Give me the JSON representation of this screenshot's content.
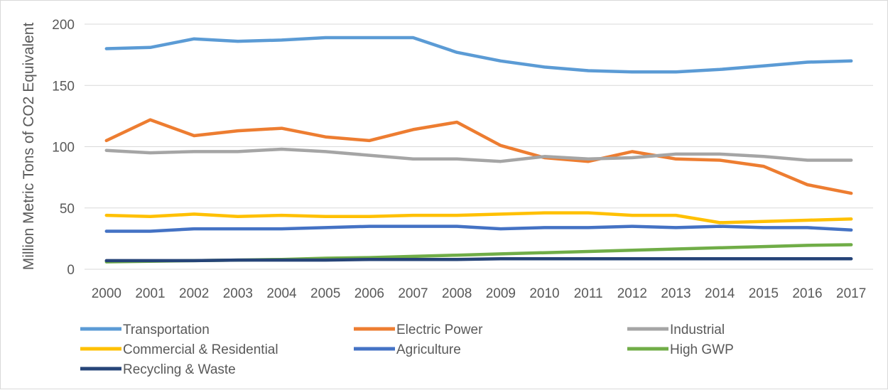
{
  "chart_data": {
    "type": "line",
    "title": "",
    "xlabel": "",
    "ylabel": "Million Metric Tons of CO2 Equivalent",
    "ylim": [
      0,
      200
    ],
    "yticks": [
      "0",
      "50",
      "100",
      "150",
      "200"
    ],
    "grid": "horizontal",
    "legend": "bottom",
    "categories": [
      "2000",
      "2001",
      "2002",
      "2003",
      "2004",
      "2005",
      "2006",
      "2007",
      "2008",
      "2009",
      "2010",
      "2011",
      "2012",
      "2013",
      "2014",
      "2015",
      "2016",
      "2017"
    ],
    "series": [
      {
        "name": "Transportation",
        "color": "#5b9bd5",
        "values": [
          180,
          181,
          188,
          186,
          187,
          189,
          189,
          189,
          177,
          170,
          165,
          162,
          161,
          161,
          163,
          166,
          169,
          170
        ]
      },
      {
        "name": "Electric Power",
        "color": "#ed7d31",
        "values": [
          105,
          122,
          109,
          113,
          115,
          108,
          105,
          114,
          120,
          101,
          91,
          88,
          96,
          90,
          89,
          84,
          69,
          62
        ]
      },
      {
        "name": "Industrial",
        "color": "#a5a5a5",
        "values": [
          97,
          95,
          96,
          96,
          98,
          96,
          93,
          90,
          90,
          88,
          92,
          90,
          91,
          94,
          94,
          92,
          89,
          89
        ]
      },
      {
        "name": "Commercial & Residential",
        "color": "#ffc000",
        "values": [
          44,
          43,
          45,
          43,
          44,
          43,
          43,
          44,
          44,
          45,
          46,
          46,
          44,
          44,
          38,
          39,
          40,
          41
        ]
      },
      {
        "name": "Agriculture",
        "color": "#4472c4",
        "values": [
          31,
          31,
          33,
          33,
          33,
          34,
          35,
          35,
          35,
          33,
          34,
          34,
          35,
          34,
          35,
          34,
          34,
          32
        ]
      },
      {
        "name": "High GWP",
        "color": "#70ad47",
        "values": [
          6,
          6.5,
          7,
          7.5,
          8,
          9,
          9.5,
          10.5,
          11.5,
          12.5,
          13.5,
          14.5,
          15.5,
          16.5,
          17.5,
          18.5,
          19.5,
          20
        ]
      },
      {
        "name": "Recycling & Waste",
        "color": "#264478",
        "values": [
          7,
          7,
          7,
          7.5,
          7.5,
          7.5,
          8,
          8,
          8,
          8.5,
          8.5,
          8.5,
          8.5,
          8.5,
          8.5,
          8.5,
          8.5,
          8.5
        ]
      }
    ]
  }
}
